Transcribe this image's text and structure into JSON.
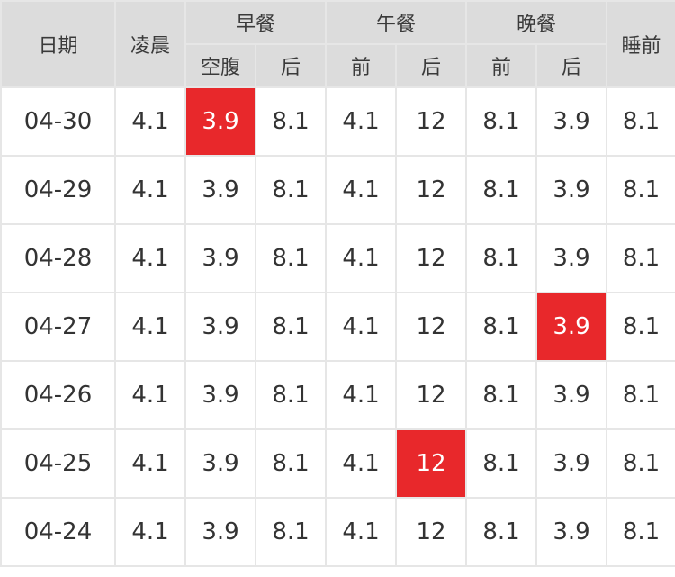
{
  "header": {
    "date": "日期",
    "early_morning": "凌晨",
    "breakfast": "早餐",
    "lunch": "午餐",
    "dinner": "晚餐",
    "bedtime": "睡前",
    "fasting": "空腹",
    "after": "后",
    "before": "前"
  },
  "rows": [
    {
      "date": "04-30",
      "values": [
        "4.1",
        "3.9",
        "8.1",
        "4.1",
        "12",
        "8.1",
        "3.9",
        "8.1"
      ],
      "highlight": [
        1
      ]
    },
    {
      "date": "04-29",
      "values": [
        "4.1",
        "3.9",
        "8.1",
        "4.1",
        "12",
        "8.1",
        "3.9",
        "8.1"
      ],
      "highlight": []
    },
    {
      "date": "04-28",
      "values": [
        "4.1",
        "3.9",
        "8.1",
        "4.1",
        "12",
        "8.1",
        "3.9",
        "8.1"
      ],
      "highlight": []
    },
    {
      "date": "04-27",
      "values": [
        "4.1",
        "3.9",
        "8.1",
        "4.1",
        "12",
        "8.1",
        "3.9",
        "8.1"
      ],
      "highlight": [
        6
      ]
    },
    {
      "date": "04-26",
      "values": [
        "4.1",
        "3.9",
        "8.1",
        "4.1",
        "12",
        "8.1",
        "3.9",
        "8.1"
      ],
      "highlight": []
    },
    {
      "date": "04-25",
      "values": [
        "4.1",
        "3.9",
        "8.1",
        "4.1",
        "12",
        "8.1",
        "3.9",
        "8.1"
      ],
      "highlight": [
        4
      ]
    },
    {
      "date": "04-24",
      "values": [
        "4.1",
        "3.9",
        "8.1",
        "4.1",
        "12",
        "8.1",
        "3.9",
        "8.1"
      ],
      "highlight": []
    }
  ],
  "colors": {
    "header_bg": "#dcdcdc",
    "grid_line": "#e6e6e6",
    "highlight": "#e8282b",
    "text": "#333333"
  }
}
